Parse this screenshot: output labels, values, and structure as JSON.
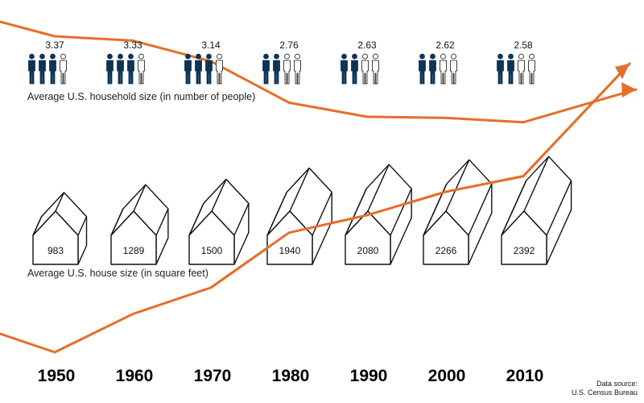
{
  "chart_data": {
    "type": "line",
    "title": "",
    "x": [
      1950,
      1960,
      1970,
      1980,
      1990,
      2000,
      2010
    ],
    "x_labels": [
      "1950",
      "1960",
      "1970",
      "1980",
      "1990",
      "2000",
      "2010"
    ],
    "series": [
      {
        "name": "Average U.S. household size (in number of people)",
        "values": [
          3.37,
          3.33,
          3.14,
          2.76,
          2.63,
          2.62,
          2.58
        ],
        "labels": [
          "3.37",
          "3.33",
          "3.14",
          "2.76",
          "2.63",
          "2.62",
          "2.58"
        ],
        "color": "#e46f2a",
        "icon": "person-icon"
      },
      {
        "name": "Average U.S. house size (in square feet)",
        "values": [
          983,
          1289,
          1500,
          1940,
          2080,
          2266,
          2392
        ],
        "labels": [
          "983",
          "1289",
          "1500",
          "1940",
          "2080",
          "2266",
          "2392"
        ],
        "color": "#e46f2a",
        "icon": "house-icon"
      }
    ],
    "source_line1": "Data source:",
    "source_line2": "U.S. Census Bureau"
  },
  "colors": {
    "line": "#e46f2a",
    "person_filled": "#0f3355",
    "person_outline": "#111111",
    "house_stroke": "#111111"
  }
}
